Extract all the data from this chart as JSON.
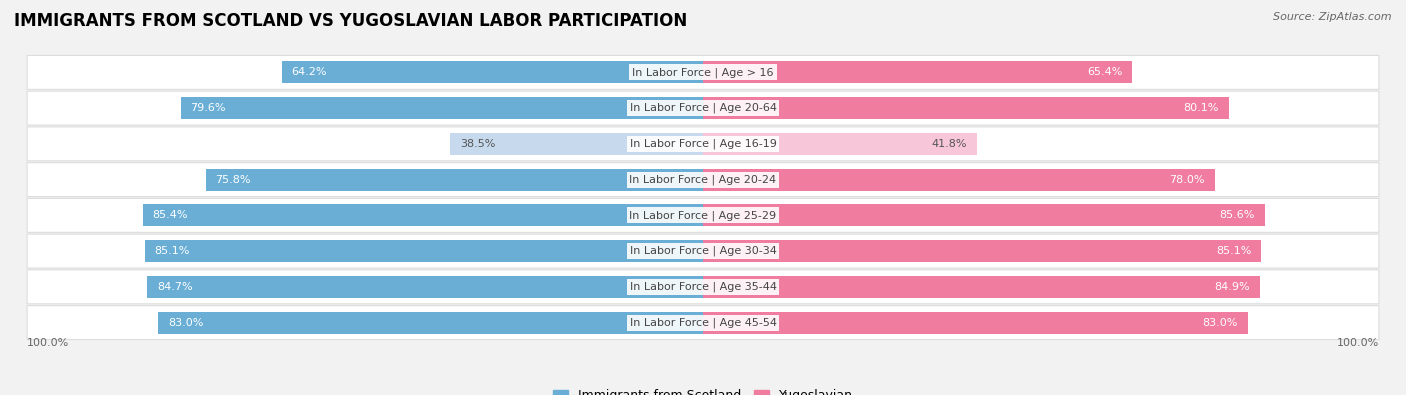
{
  "title": "IMMIGRANTS FROM SCOTLAND VS YUGOSLAVIAN LABOR PARTICIPATION",
  "source": "Source: ZipAtlas.com",
  "categories": [
    "In Labor Force | Age > 16",
    "In Labor Force | Age 20-64",
    "In Labor Force | Age 16-19",
    "In Labor Force | Age 20-24",
    "In Labor Force | Age 25-29",
    "In Labor Force | Age 30-34",
    "In Labor Force | Age 35-44",
    "In Labor Force | Age 45-54"
  ],
  "scotland_values": [
    64.2,
    79.6,
    38.5,
    75.8,
    85.4,
    85.1,
    84.7,
    83.0
  ],
  "yugoslavian_values": [
    65.4,
    80.1,
    41.8,
    78.0,
    85.6,
    85.1,
    84.9,
    83.0
  ],
  "scotland_color": "#6aaed6",
  "yugoslavian_color": "#f07ca0",
  "scotland_light_color": "#c6d9ed",
  "yugoslavian_light_color": "#f7c6d8",
  "bar_height": 0.62,
  "background_color": "#f2f2f2",
  "row_bg_even": "#ffffff",
  "row_bg_odd": "#f7f7f7",
  "title_fontsize": 12,
  "label_fontsize": 8,
  "value_fontsize": 8,
  "legend_fontsize": 9,
  "max_value": 100.0,
  "center_label_color": "#444444",
  "axis_label_color": "#666666"
}
